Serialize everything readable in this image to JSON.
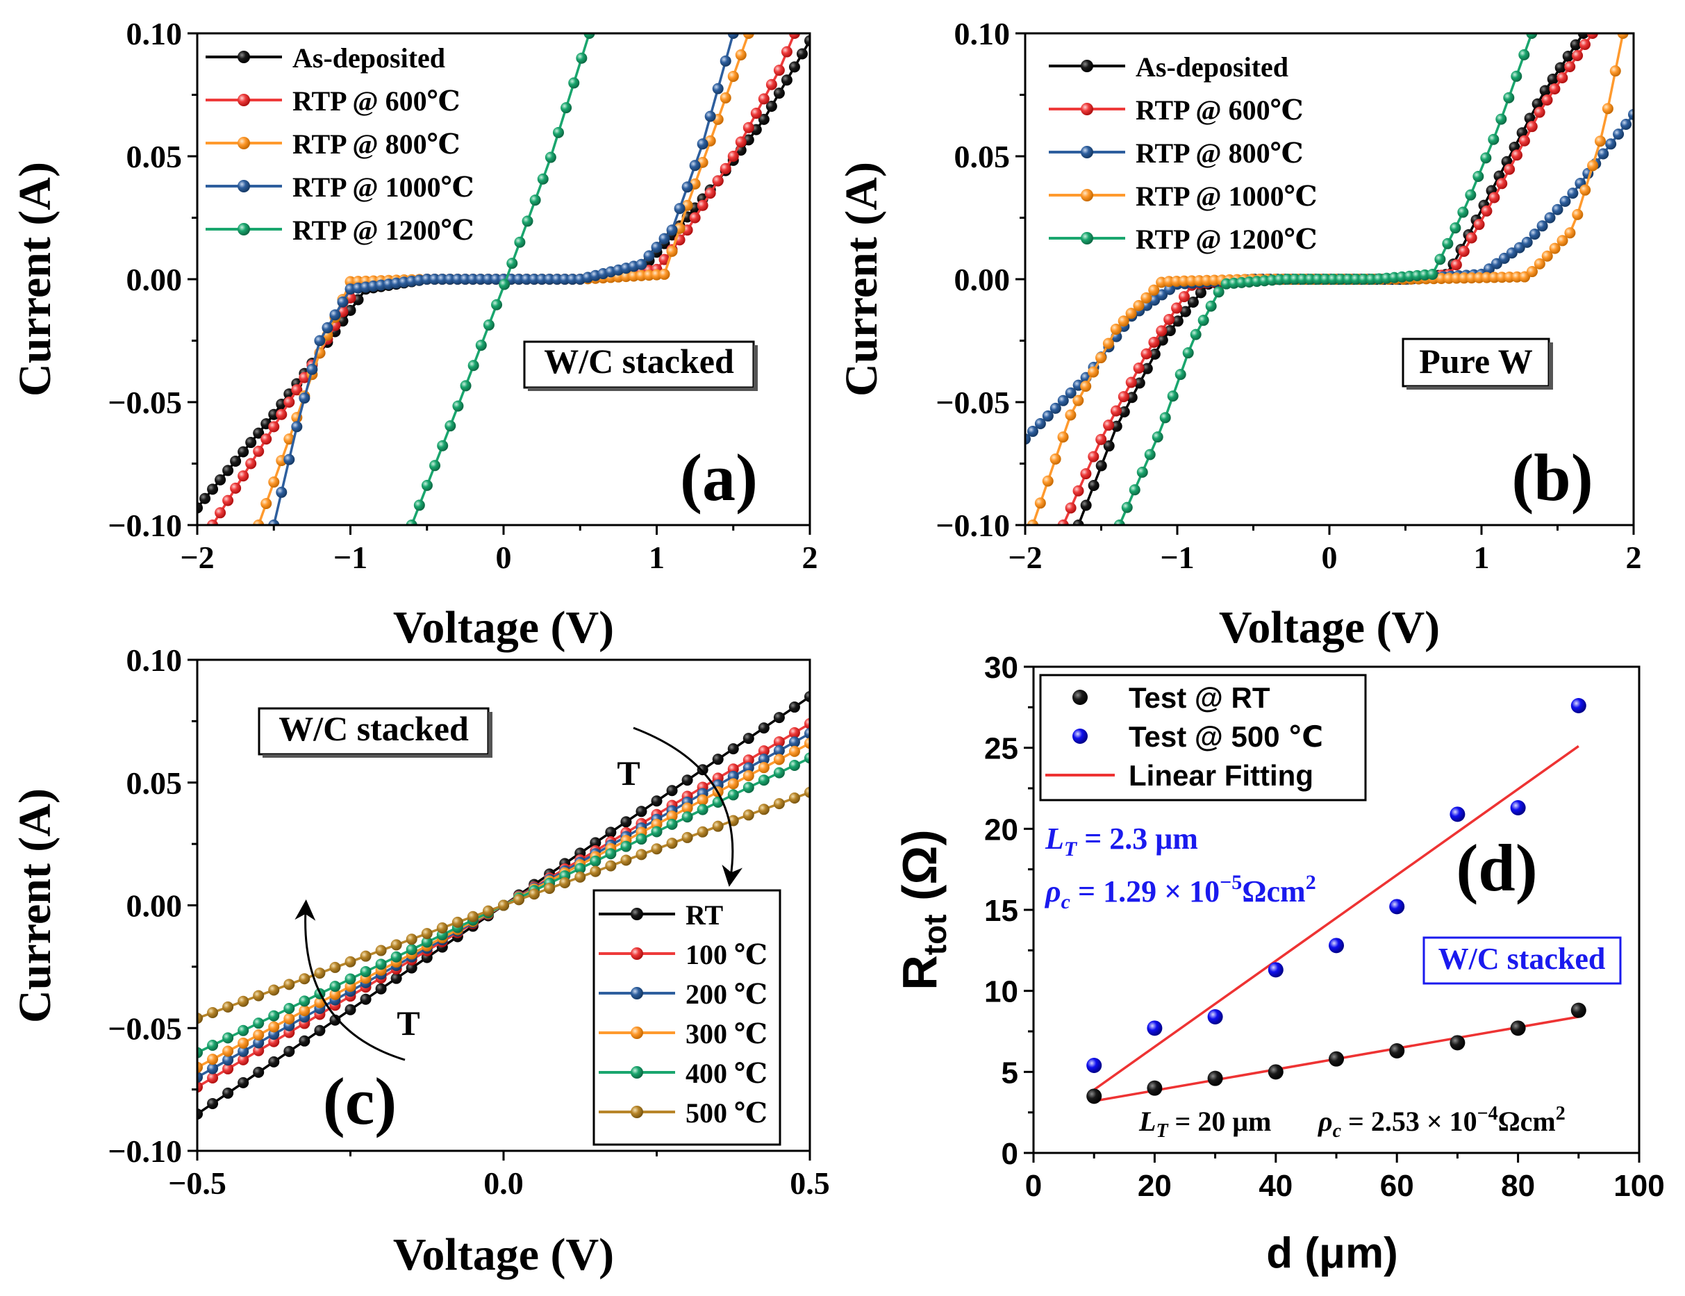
{
  "colors": {
    "black": "#000000",
    "red": "#ee3b3b",
    "orange": "#ff9a2e",
    "blue": "#2e5f9e",
    "green": "#1aa66e",
    "olive": "#b8862a",
    "ball_blue": "#1010ee",
    "fit_red": "#ee3333",
    "text_blue": "#1a1aee"
  },
  "chart_data": [
    {
      "id": "a",
      "type": "line",
      "panel_label": "(a)",
      "title": "",
      "xlabel": "Voltage (V)",
      "ylabel": "Current (A)",
      "xlim": [
        -2,
        2
      ],
      "ylim": [
        -0.1,
        0.1
      ],
      "xticks": [
        "−2",
        "−1",
        "0",
        "1",
        "2"
      ],
      "yticks": [
        "−0.10",
        "−0.05",
        "0.00",
        "0.05",
        "0.10"
      ],
      "annotation": "W/C stacked",
      "legend": [
        "As-deposited",
        "RTP @ 600℃",
        "RTP @ 800℃",
        "RTP @ 1000℃",
        "RTP @ 1200℃"
      ],
      "series": [
        {
          "name": "As-deposited",
          "color": "black",
          "x": [
            -2,
            -1.5,
            -1.2,
            -0.9,
            -0.5,
            0,
            0.5,
            0.9,
            1.1,
            1.4,
            1.7,
            2
          ],
          "y": [
            -0.093,
            -0.055,
            -0.03,
            -0.004,
            0,
            0,
            0,
            0.004,
            0.018,
            0.04,
            0.065,
            0.097
          ]
        },
        {
          "name": "RTP @ 600℃",
          "color": "red",
          "x": [
            -1.9,
            -1.5,
            -1.2,
            -0.95,
            -0.5,
            0,
            0.5,
            1.0,
            1.2,
            1.5,
            1.8,
            1.9
          ],
          "y": [
            -0.1,
            -0.06,
            -0.03,
            -0.002,
            0,
            0,
            0,
            0.004,
            0.02,
            0.05,
            0.085,
            0.1
          ]
        },
        {
          "name": "RTP @ 800℃",
          "color": "orange",
          "x": [
            -1.6,
            -1.4,
            -1.2,
            -1.0,
            -0.5,
            0,
            0.5,
            1.05,
            1.2,
            1.4,
            1.6
          ],
          "y": [
            -0.1,
            -0.065,
            -0.03,
            -0.001,
            0,
            0,
            0,
            0.002,
            0.03,
            0.065,
            0.1
          ]
        },
        {
          "name": "RTP @ 1000℃",
          "color": "blue",
          "x": [
            -1.5,
            -1.35,
            -1.2,
            -1.0,
            -0.5,
            0,
            0.5,
            0.9,
            1.1,
            1.3,
            1.5
          ],
          "y": [
            -0.1,
            -0.06,
            -0.025,
            -0.004,
            0,
            0,
            0,
            0.006,
            0.02,
            0.055,
            0.1
          ]
        },
        {
          "name": "RTP @ 1200℃",
          "color": "green",
          "x": [
            -0.6,
            -0.3,
            0,
            0.3,
            0.56
          ],
          "y": [
            -0.1,
            -0.052,
            -0.003,
            0.048,
            0.1
          ]
        }
      ]
    },
    {
      "id": "b",
      "type": "line",
      "panel_label": "(b)",
      "title": "",
      "xlabel": "Voltage (V)",
      "ylabel": "Current (A)",
      "xlim": [
        -2,
        2
      ],
      "ylim": [
        -0.1,
        0.1
      ],
      "xticks": [
        "−2",
        "−1",
        "0",
        "1",
        "2"
      ],
      "yticks": [
        "−0.10",
        "−0.05",
        "0.00",
        "0.05",
        "0.10"
      ],
      "annotation": "Pure W",
      "legend": [
        "As-deposited",
        "RTP @ 600℃",
        "RTP @ 800℃",
        "RTP @ 1000℃",
        "RTP @ 1200℃"
      ],
      "series": [
        {
          "name": "As-deposited",
          "color": "black",
          "x": [
            -1.65,
            -1.4,
            -1.1,
            -0.8,
            -0.5,
            0,
            0.5,
            0.78,
            1.1,
            1.4,
            1.67
          ],
          "y": [
            -0.1,
            -0.06,
            -0.025,
            -0.002,
            0,
            0,
            0,
            0.002,
            0.04,
            0.075,
            0.1
          ]
        },
        {
          "name": "RTP @ 600℃",
          "color": "red",
          "x": [
            -1.75,
            -1.5,
            -1.2,
            -0.9,
            -0.5,
            0,
            0.5,
            0.8,
            1.1,
            1.4,
            1.73
          ],
          "y": [
            -0.1,
            -0.065,
            -0.03,
            -0.002,
            0,
            0,
            0,
            0.002,
            0.035,
            0.07,
            0.1
          ]
        },
        {
          "name": "RTP @ 800℃",
          "color": "blue",
          "x": [
            -2,
            -1.6,
            -1.3,
            -1.0,
            -0.5,
            0,
            0.5,
            1.0,
            1.3,
            1.6,
            2
          ],
          "y": [
            -0.065,
            -0.04,
            -0.015,
            -0.002,
            0,
            0,
            0,
            0.002,
            0.015,
            0.035,
            0.067
          ]
        },
        {
          "name": "RTP @ 1000℃",
          "color": "orange",
          "x": [
            -1.95,
            -1.7,
            -1.4,
            -1.1,
            -0.5,
            0,
            0.5,
            1.3,
            1.6,
            1.8,
            1.93
          ],
          "y": [
            -0.1,
            -0.055,
            -0.02,
            -0.001,
            0,
            0,
            0,
            0.001,
            0.02,
            0.06,
            0.1
          ]
        },
        {
          "name": "RTP @ 1200℃",
          "color": "green",
          "x": [
            -1.38,
            -1.1,
            -0.9,
            -0.7,
            -0.3,
            0,
            0.3,
            0.68,
            0.9,
            1.1,
            1.33
          ],
          "y": [
            -0.1,
            -0.06,
            -0.025,
            -0.002,
            0,
            0,
            0,
            0.002,
            0.03,
            0.06,
            0.1
          ]
        }
      ]
    },
    {
      "id": "c",
      "type": "line",
      "panel_label": "(c)",
      "title": "",
      "xlabel": "Voltage (V)",
      "ylabel": "Current (A)",
      "xlim": [
        -0.5,
        0.5
      ],
      "ylim": [
        -0.1,
        0.1
      ],
      "xticks": [
        "−0.5",
        "0.0",
        "0.5"
      ],
      "yticks": [
        "−0.10",
        "−0.05",
        "0.00",
        "0.05",
        "0.10"
      ],
      "annotation": "W/C stacked",
      "arrow_label_top": "T",
      "arrow_label_bottom": "T",
      "legend": [
        "RT",
        "100 ℃",
        "200 ℃",
        "300 ℃",
        "400 ℃",
        "500 ℃"
      ],
      "series": [
        {
          "name": "RT",
          "color": "black",
          "x": [
            -0.5,
            0,
            0.5
          ],
          "y": [
            -0.085,
            0,
            0.085
          ]
        },
        {
          "name": "100 ℃",
          "color": "red",
          "x": [
            -0.5,
            0,
            0.5
          ],
          "y": [
            -0.074,
            0,
            0.074
          ]
        },
        {
          "name": "200 ℃",
          "color": "blue",
          "x": [
            -0.5,
            0,
            0.5
          ],
          "y": [
            -0.07,
            0,
            0.07
          ]
        },
        {
          "name": "300 ℃",
          "color": "orange",
          "x": [
            -0.5,
            0,
            0.5
          ],
          "y": [
            -0.066,
            0,
            0.066
          ]
        },
        {
          "name": "400 ℃",
          "color": "green",
          "x": [
            -0.5,
            0,
            0.5
          ],
          "y": [
            -0.06,
            0,
            0.06
          ]
        },
        {
          "name": "500 ℃",
          "color": "olive",
          "x": [
            -0.5,
            0,
            0.5
          ],
          "y": [
            -0.046,
            0,
            0.046
          ]
        }
      ]
    },
    {
      "id": "d",
      "type": "scatter",
      "panel_label": "(d)",
      "title": "",
      "xlabel": "d (μm)",
      "ylabel": "R",
      "ylabel_sub": "tot",
      "ylabel_unit": " (Ω)",
      "xlim": [
        0,
        100
      ],
      "ylim": [
        0,
        30
      ],
      "xticks": [
        "0",
        "20",
        "40",
        "60",
        "80",
        "100"
      ],
      "yticks": [
        "0",
        "5",
        "10",
        "15",
        "20",
        "25",
        "30"
      ],
      "legend": [
        "Test @ RT",
        "Test @ 500 ℃",
        "Linear Fitting"
      ],
      "annotation": "W/C stacked",
      "annot_LT_500": "L",
      "annot_LT_500_sub": "T",
      "annot_LT_500_val": " = 2.3 μm",
      "annot_rho_500": "ρ",
      "annot_rho_500_sub": "c",
      "annot_rho_500_val": " = 1.29 × 10",
      "annot_rho_500_exp": "−5",
      "annot_rho_500_unit": "Ωcm",
      "annot_unit_exp": "2",
      "annot_LT_RT": "L",
      "annot_LT_RT_sub": "T",
      "annot_LT_RT_val": " = 20 μm",
      "annot_rho_RT": "ρ",
      "annot_rho_RT_sub": "c",
      "annot_rho_RT_val": " = 2.53 × 10",
      "annot_rho_RT_exp": "−4",
      "annot_rho_RT_unit": "Ωcm",
      "series": [
        {
          "name": "Test @ RT",
          "color": "black",
          "x": [
            10,
            20,
            30,
            40,
            50,
            60,
            70,
            80,
            90
          ],
          "y": [
            3.5,
            4.0,
            4.6,
            5.0,
            5.8,
            6.3,
            6.8,
            7.7,
            8.8
          ]
        },
        {
          "name": "Test @ 500 ℃",
          "color": "ball_blue",
          "x": [
            10,
            20,
            30,
            40,
            50,
            60,
            70,
            80,
            90
          ],
          "y": [
            5.4,
            7.7,
            8.4,
            11.3,
            12.8,
            15.2,
            20.9,
            21.3,
            27.6
          ]
        }
      ],
      "fits": [
        {
          "name": "Linear Fitting",
          "color": "fit_red",
          "x": [
            10,
            90
          ],
          "y": [
            3.2,
            8.4
          ]
        },
        {
          "name": "Linear Fitting",
          "color": "fit_red",
          "x": [
            10,
            90
          ],
          "y": [
            3.9,
            25.1
          ]
        }
      ]
    }
  ]
}
